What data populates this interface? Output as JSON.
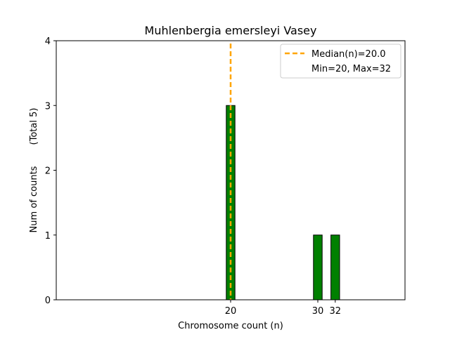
{
  "chart_data": {
    "type": "bar",
    "title": "Muhlenbergia emersleyi Vasey",
    "xlabel": "Chromosome count (n)",
    "ylabel": "Num of counts",
    "ylabel_note": "(Total 5)",
    "xlim": [
      0,
      40
    ],
    "ylim": [
      0,
      4
    ],
    "x_ticks": [
      20,
      30,
      32
    ],
    "y_ticks": [
      0,
      1,
      2,
      3,
      4
    ],
    "bars": [
      {
        "x": 20,
        "value": 3
      },
      {
        "x": 30,
        "value": 1
      },
      {
        "x": 32,
        "value": 1
      }
    ],
    "bar_width": 1,
    "bar_color": "#008000",
    "bar_edge_color": "#000000",
    "median": 20,
    "median_color": "#FFA500",
    "legend": {
      "placement": "top-right",
      "entries": [
        "Median(n)=20.0",
        "Min=20, Max=32"
      ]
    },
    "grid": false
  }
}
